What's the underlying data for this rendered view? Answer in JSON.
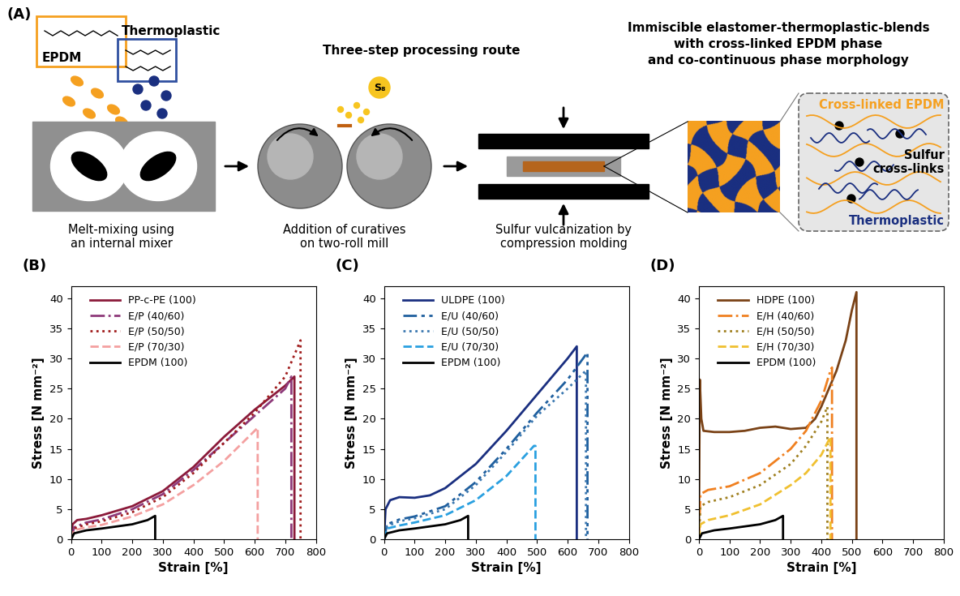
{
  "diagram": {
    "label": "(A)",
    "title": "Three-step processing route",
    "heading": [
      "Immiscible elastomer-thermoplastic-blends",
      "with cross-linked EPDM phase",
      "and co-continuous phase morphology"
    ],
    "structures": {
      "elastomer": "EPDM",
      "thermoplastic": "Thermoplastic"
    },
    "curative": "S₈",
    "steps": [
      {
        "caption": [
          "Melt-mixing using",
          "an internal mixer"
        ]
      },
      {
        "caption": [
          "Addition of curatives",
          "on two-roll mill"
        ]
      },
      {
        "caption": [
          "Sulfur vulcanization by",
          "compression molding"
        ]
      }
    ],
    "morphology": {
      "elastomer": "Cross-linked EPDM",
      "crosslinks": [
        "Sulfur",
        "cross-links"
      ],
      "thermoplastic": "Thermoplastic"
    }
  },
  "chart_data": [
    {
      "type": "line",
      "title": "(B)",
      "x_label": "Strain [%]",
      "y_label": "Stress [N mm⁻²]",
      "xlim": [
        0,
        800
      ],
      "xticks": [
        0,
        100,
        200,
        300,
        400,
        500,
        600,
        700,
        800
      ],
      "ylim": [
        0,
        42
      ],
      "yticks": [
        0,
        5,
        10,
        15,
        20,
        25,
        30,
        35,
        40
      ],
      "legend": "upper left",
      "series": [
        {
          "name": "PP-c-PE (100)",
          "color": "#8b1a3a",
          "line_style": "solid",
          "x": [
            0,
            5,
            20,
            50,
            100,
            200,
            300,
            400,
            500,
            600,
            650,
            700,
            730,
            730
          ],
          "values": [
            0,
            2.5,
            3.2,
            3.4,
            4,
            5.5,
            8,
            12,
            17,
            21.5,
            23.5,
            25.5,
            27,
            0
          ]
        },
        {
          "name": "E/P (40/60)",
          "color": "#8e3a7a",
          "line_style": "dashdot",
          "x": [
            0,
            10,
            50,
            100,
            200,
            300,
            400,
            500,
            600,
            700,
            720,
            720
          ],
          "values": [
            0,
            2,
            2.8,
            3.3,
            5,
            7.5,
            11.5,
            16,
            20.5,
            25,
            27,
            0
          ]
        },
        {
          "name": "E/P (50/50)",
          "color": "#a01c1c",
          "line_style": "dotted",
          "x": [
            0,
            10,
            50,
            100,
            200,
            300,
            400,
            500,
            600,
            700,
            750,
            750
          ],
          "values": [
            0,
            1.8,
            2.5,
            3,
            4.5,
            7,
            11,
            16,
            21,
            27,
            33,
            0
          ]
        },
        {
          "name": "E/P (70/30)",
          "color": "#f4a0a0",
          "line_style": "dashed",
          "x": [
            0,
            10,
            50,
            100,
            200,
            300,
            400,
            500,
            600,
            610,
            610
          ],
          "values": [
            0,
            1.5,
            2,
            2.4,
            3.8,
            5.8,
            9,
            13,
            18,
            18.5,
            0
          ]
        },
        {
          "name": "EPDM (100)",
          "color": "#000000",
          "line_style": "solid",
          "x": [
            0,
            10,
            50,
            100,
            200,
            250,
            275,
            275
          ],
          "values": [
            0,
            1,
            1.5,
            1.8,
            2.5,
            3.2,
            3.9,
            0
          ]
        }
      ]
    },
    {
      "type": "line",
      "title": "(C)",
      "x_label": "Strain [%]",
      "y_label": "Stress [N mm⁻²]",
      "xlim": [
        0,
        800
      ],
      "xticks": [
        0,
        100,
        200,
        300,
        400,
        500,
        600,
        700,
        800
      ],
      "ylim": [
        0,
        42
      ],
      "yticks": [
        0,
        5,
        10,
        15,
        20,
        25,
        30,
        35,
        40
      ],
      "legend": "upper left",
      "series": [
        {
          "name": "ULDPE (100)",
          "color": "#1a2f80",
          "line_style": "solid",
          "x": [
            0,
            5,
            20,
            50,
            100,
            150,
            200,
            300,
            400,
            500,
            600,
            630,
            630
          ],
          "values": [
            0,
            5,
            6.5,
            7,
            6.9,
            7.3,
            8.5,
            12.5,
            18,
            24,
            30,
            32,
            0
          ]
        },
        {
          "name": "E/U (40/60)",
          "color": "#1f5f9e",
          "line_style": "dashdotdot",
          "x": [
            0,
            10,
            50,
            100,
            200,
            300,
            400,
            500,
            600,
            665,
            665
          ],
          "values": [
            0,
            2.5,
            3.3,
            3.8,
            5.5,
            9.5,
            15,
            21,
            26.5,
            31,
            0
          ]
        },
        {
          "name": "E/U (50/50)",
          "color": "#3b78b0",
          "line_style": "dotted",
          "x": [
            0,
            10,
            50,
            100,
            200,
            300,
            400,
            500,
            600,
            660,
            660
          ],
          "values": [
            0,
            2.2,
            3,
            3.5,
            5,
            9,
            14.5,
            20.5,
            25,
            28,
            0
          ]
        },
        {
          "name": "E/U (70/30)",
          "color": "#2aa0e0",
          "line_style": "dashed",
          "x": [
            0,
            10,
            50,
            100,
            200,
            300,
            400,
            490,
            495,
            495
          ],
          "values": [
            0,
            1.8,
            2.3,
            2.8,
            4,
            6.5,
            10.5,
            15.5,
            15.5,
            0
          ]
        },
        {
          "name": "EPDM (100)",
          "color": "#000000",
          "line_style": "solid",
          "x": [
            0,
            10,
            50,
            100,
            200,
            250,
            275,
            275
          ],
          "values": [
            0,
            1,
            1.5,
            1.8,
            2.5,
            3.2,
            3.9,
            0
          ]
        }
      ]
    },
    {
      "type": "line",
      "title": "(D)",
      "x_label": "Strain [%]",
      "y_label": "Stress [N mm⁻²]",
      "xlim": [
        0,
        800
      ],
      "xticks": [
        0,
        100,
        200,
        300,
        400,
        500,
        600,
        700,
        800
      ],
      "ylim": [
        0,
        42
      ],
      "yticks": [
        0,
        5,
        10,
        15,
        20,
        25,
        30,
        35,
        40
      ],
      "legend": "upper left",
      "series": [
        {
          "name": "HDPE (100)",
          "color": "#7a4216",
          "line_style": "solid",
          "x": [
            0,
            3,
            8,
            15,
            50,
            100,
            150,
            200,
            250,
            300,
            350,
            380,
            400,
            450,
            480,
            500,
            515,
            515
          ],
          "values": [
            0,
            26.5,
            20,
            18,
            17.8,
            17.8,
            18,
            18.5,
            18.7,
            18.3,
            18.5,
            20,
            22,
            28,
            33,
            38,
            41,
            0
          ]
        },
        {
          "name": "E/H (40/60)",
          "color": "#f08020",
          "line_style": "dashdot",
          "x": [
            0,
            5,
            30,
            100,
            200,
            300,
            350,
            400,
            430,
            435,
            435
          ],
          "values": [
            0,
            7.5,
            8.2,
            8.8,
            11,
            15,
            18,
            23,
            28,
            28.5,
            0
          ]
        },
        {
          "name": "E/H (50/50)",
          "color": "#a08020",
          "line_style": "dotted",
          "x": [
            0,
            5,
            30,
            100,
            200,
            300,
            350,
            400,
            420,
            420
          ],
          "values": [
            0,
            5.5,
            6.2,
            7,
            9,
            12.5,
            15.5,
            19.5,
            22,
            0
          ]
        },
        {
          "name": "E/H (70/30)",
          "color": "#f0c030",
          "line_style": "dashed",
          "x": [
            0,
            5,
            30,
            100,
            200,
            300,
            350,
            400,
            430,
            430
          ],
          "values": [
            0,
            2.5,
            3.2,
            4,
            5.8,
            9,
            11,
            14,
            17,
            0
          ]
        },
        {
          "name": "EPDM (100)",
          "color": "#000000",
          "line_style": "solid",
          "x": [
            0,
            10,
            50,
            100,
            200,
            250,
            275,
            275
          ],
          "values": [
            0,
            1,
            1.5,
            1.8,
            2.5,
            3.2,
            3.9,
            0
          ]
        }
      ]
    }
  ]
}
